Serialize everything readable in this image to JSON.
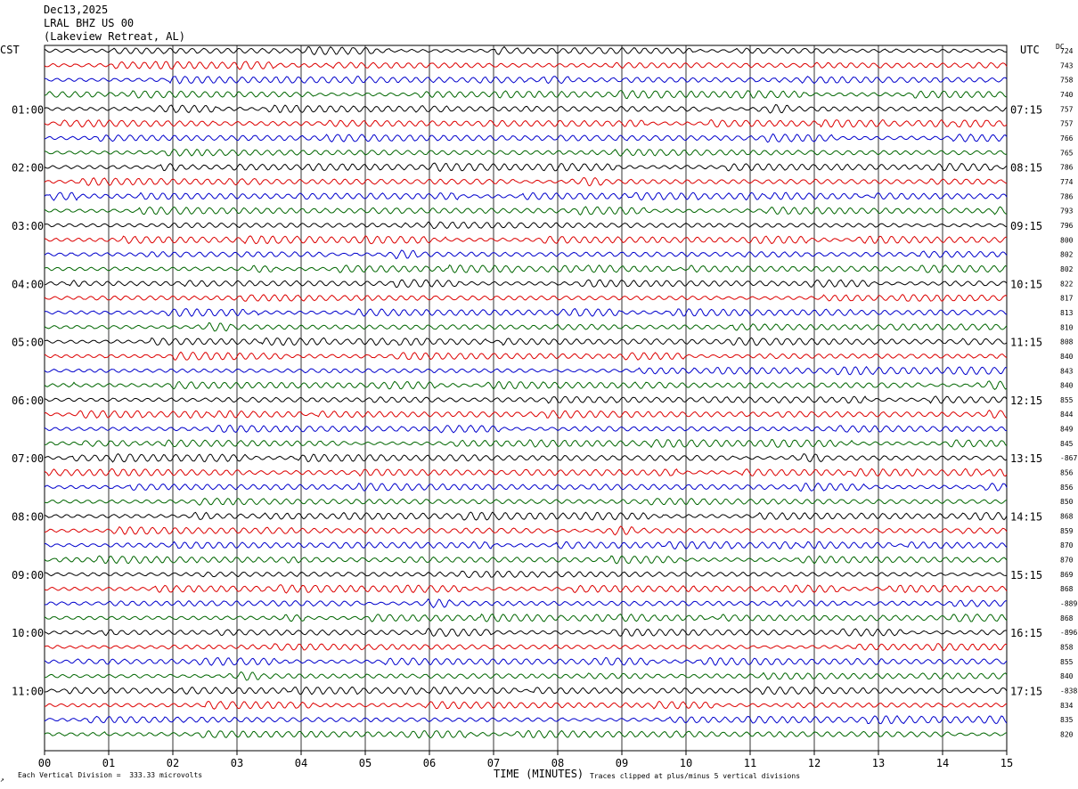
{
  "header": {
    "date": "Dec13,2025",
    "station": "LRAL BHZ US 00",
    "location": "(Lakeview Retreat, AL)"
  },
  "left_tz": "CST",
  "right_tz": "UTC",
  "dc_label": "DC",
  "footer": {
    "scale_note": "Each Vertical Division =  333.33 microvolts",
    "clip_note": "Traces clipped at plus/minus 5 vertical divisions",
    "corner_mark": "↗"
  },
  "colors": {
    "black": "#000000",
    "red": "#dd0000",
    "blue": "#0000cc",
    "green": "#006600"
  },
  "chart_data": {
    "type": "line",
    "xlabel": "TIME (MINUTES)",
    "x_ticks": [
      "00",
      "01",
      "02",
      "03",
      "04",
      "05",
      "06",
      "07",
      "08",
      "09",
      "10",
      "11",
      "12",
      "13",
      "14",
      "15"
    ],
    "xlim": [
      0,
      15
    ],
    "trace_color_cycle": [
      "black",
      "red",
      "blue",
      "green"
    ],
    "trace_count": 48,
    "cst_hour_labels": [
      "01:00",
      "02:00",
      "03:00",
      "04:00",
      "05:00",
      "06:00",
      "07:00",
      "08:00",
      "09:00",
      "10:00",
      "11:00"
    ],
    "utc_hour_labels": [
      "07:15",
      "08:15",
      "09:15",
      "10:15",
      "11:15",
      "12:15",
      "13:15",
      "14:15",
      "15:15",
      "16:15",
      "17:15"
    ],
    "dc_values": [
      "724",
      "743",
      "758",
      "740",
      "757",
      "757",
      "766",
      "765",
      "786",
      "774",
      "786",
      "793",
      "796",
      "800",
      "802",
      "802",
      "822",
      "817",
      "813",
      "810",
      "808",
      "840",
      "843",
      "840",
      "855",
      "844",
      "849",
      "845",
      "-867",
      "856",
      "856",
      "850",
      "868",
      "859",
      "870",
      "870",
      "869",
      "868",
      "-889",
      "868",
      "-896",
      "858",
      "855",
      "840",
      "-838",
      "834",
      "835",
      "820"
    ]
  }
}
